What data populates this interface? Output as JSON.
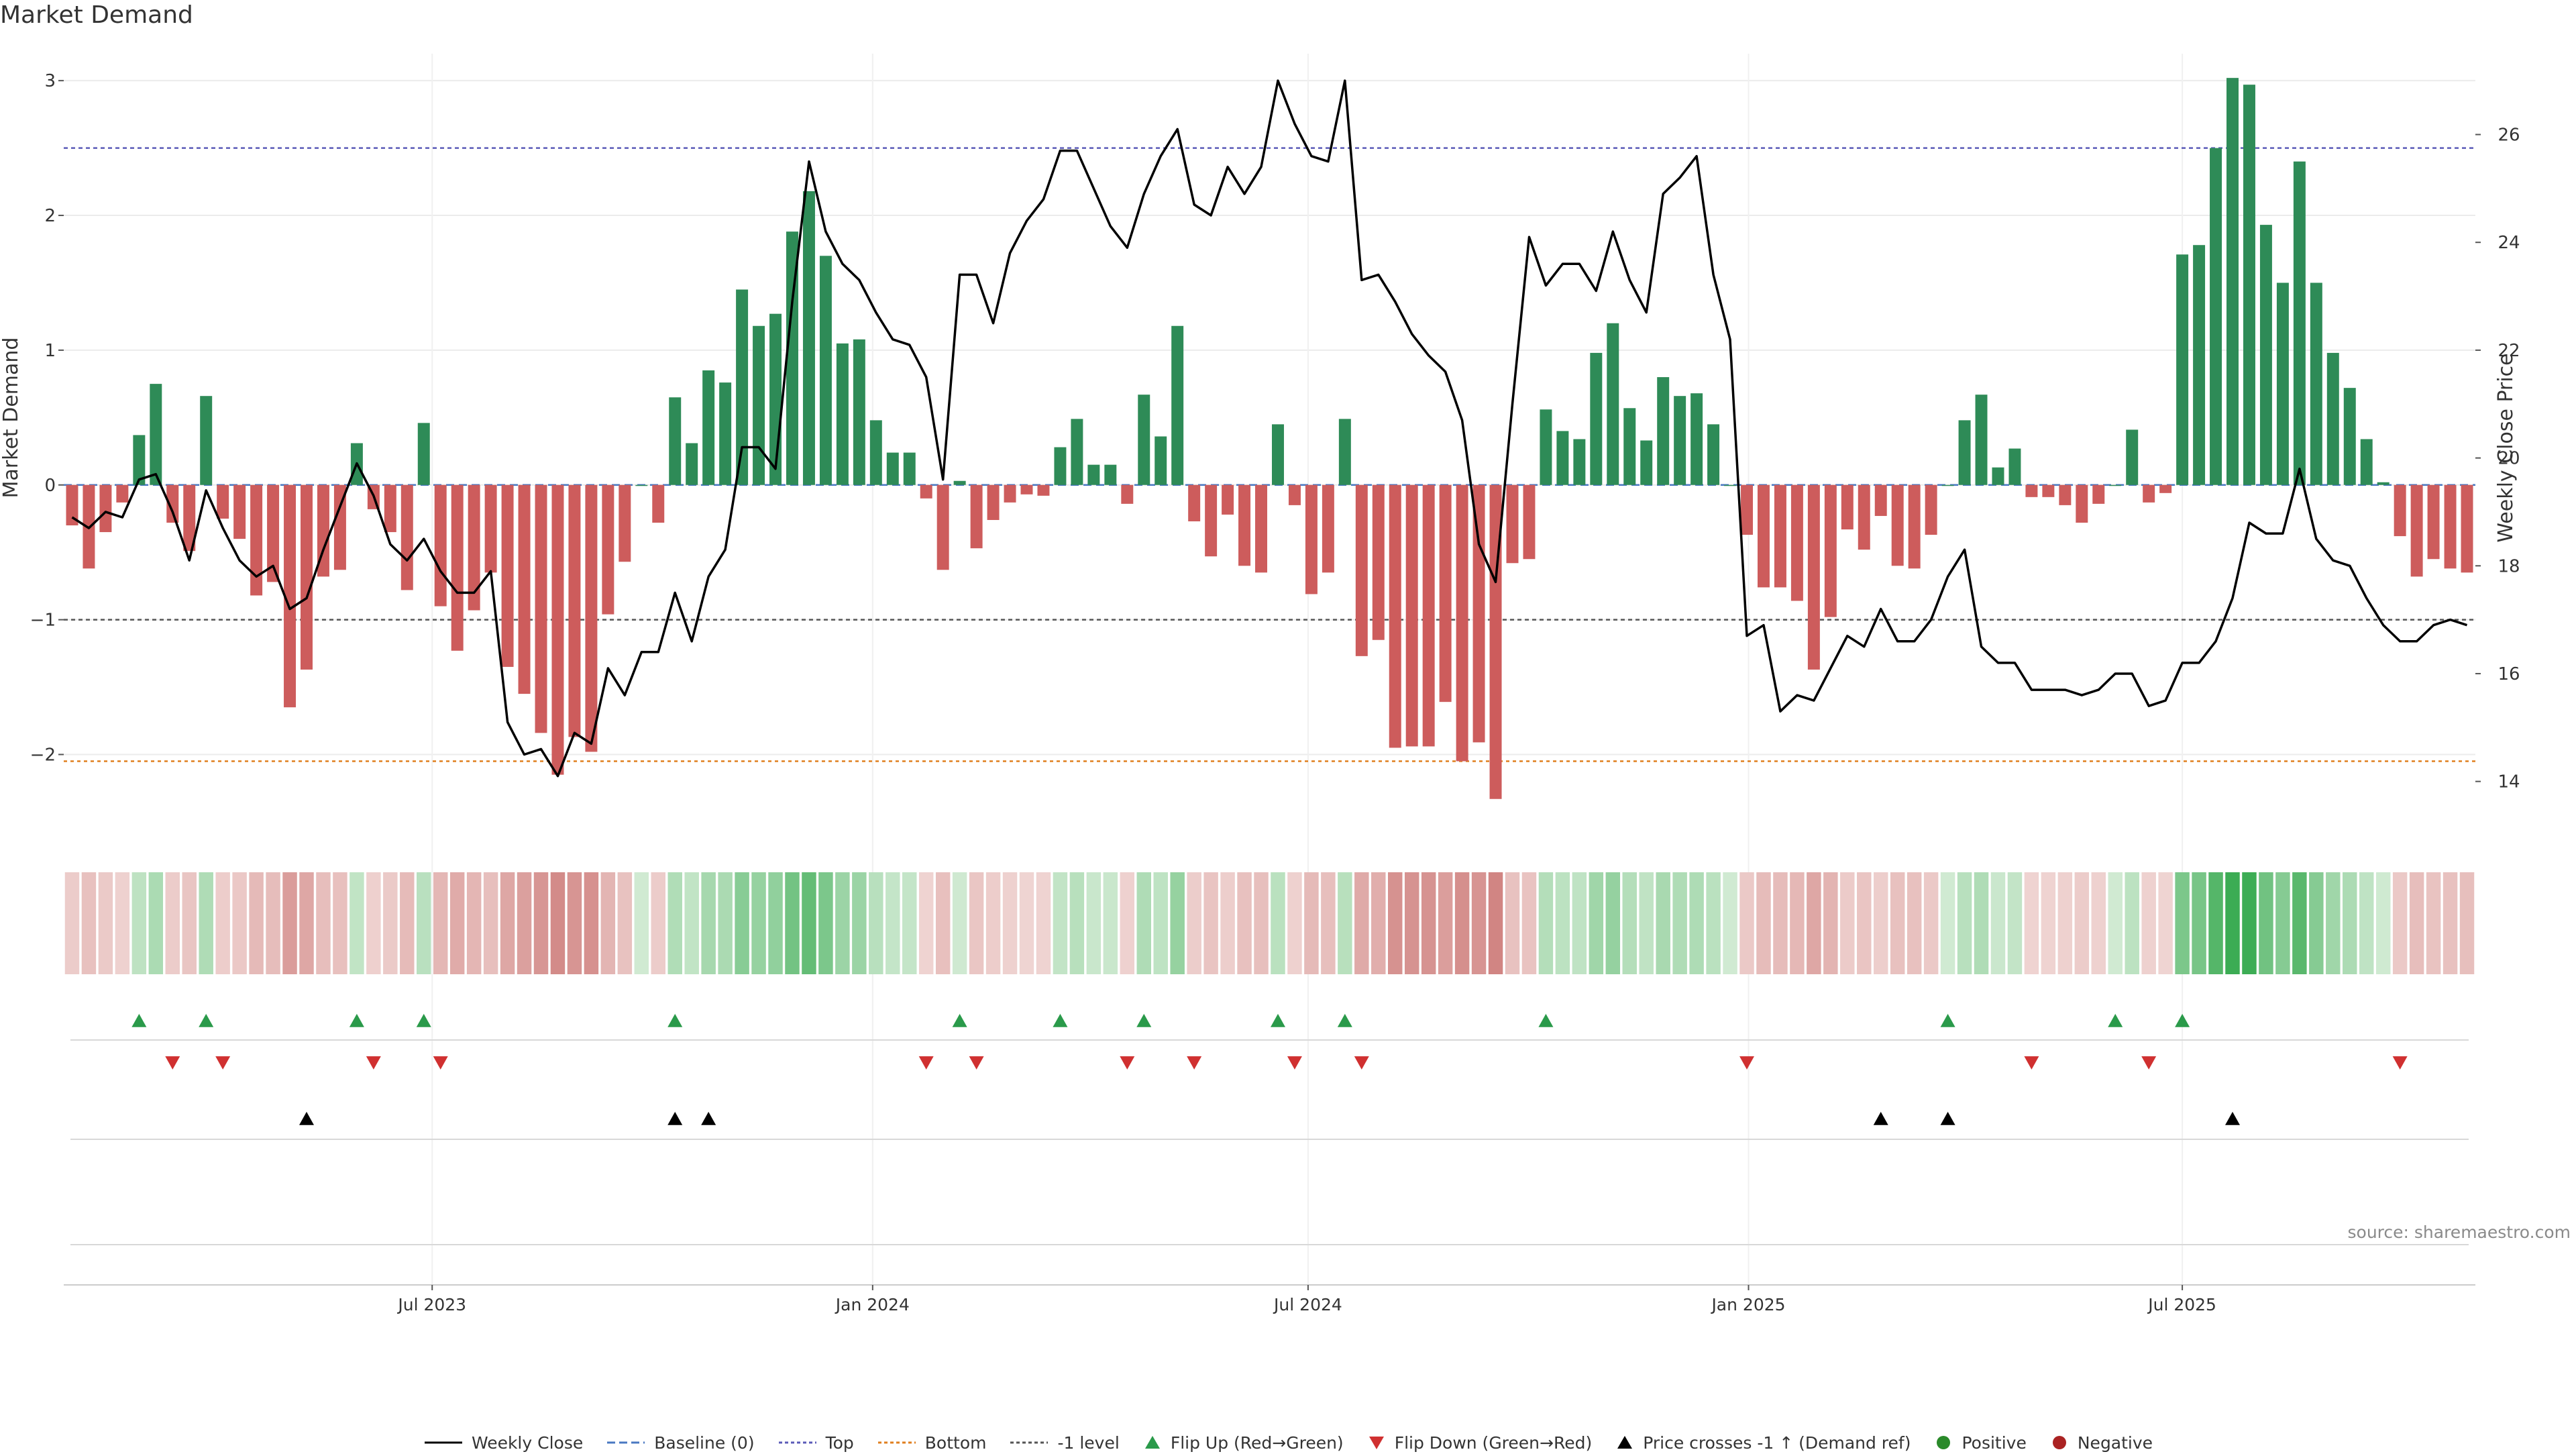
{
  "page_title": "Market Demand",
  "source_note": "source: sharemaestro.com",
  "legend": [
    {
      "key": "weekly_close",
      "label": "Weekly Close",
      "symbol": "line-solid",
      "color": "#000000"
    },
    {
      "key": "baseline",
      "label": "Baseline (0)",
      "symbol": "line-dashed",
      "color": "#4a78c2"
    },
    {
      "key": "top",
      "label": "Top",
      "symbol": "line-dotted",
      "color": "#5b5bb8"
    },
    {
      "key": "bottom",
      "label": "Bottom",
      "symbol": "line-dotted",
      "color": "#e08020"
    },
    {
      "key": "minus1",
      "label": "-1 level",
      "symbol": "line-dotted",
      "color": "#555555"
    },
    {
      "key": "flip_up",
      "label": "Flip Up (Red→Green)",
      "symbol": "tri-up",
      "color": "#2a9a4a"
    },
    {
      "key": "flip_down",
      "label": "Flip Down (Green→Red)",
      "symbol": "tri-down",
      "color": "#d03030"
    },
    {
      "key": "price_cross",
      "label": "Price crosses -1 ↑ (Demand ref)",
      "symbol": "tri-up",
      "color": "#000000"
    },
    {
      "key": "positive",
      "label": "Positive",
      "symbol": "dot",
      "color": "#2a8a2a"
    },
    {
      "key": "negative",
      "label": "Negative",
      "symbol": "dot",
      "color": "#aa2222"
    }
  ],
  "chart_data": {
    "type": "bar",
    "title": "Market Demand",
    "ylabel": "Market Demand",
    "y2label": "Weekly Close Price",
    "ylim": [
      -2.6,
      3.2
    ],
    "y2lim": [
      13.0,
      27.5
    ],
    "yticks": [
      -2,
      -1,
      0,
      1,
      2,
      3
    ],
    "yticklabels": [
      "−2",
      "−1",
      "0",
      "1",
      "2",
      "3"
    ],
    "y2ticks": [
      14,
      16,
      18,
      20,
      22,
      24,
      26
    ],
    "xticks": [
      {
        "week": 22,
        "label": "Jul 2023"
      },
      {
        "week": 48.3,
        "label": "Jan 2024"
      },
      {
        "week": 74.3,
        "label": "Jul 2024"
      },
      {
        "week": 100.6,
        "label": "Jan 2025"
      },
      {
        "week": 126.5,
        "label": "Jul 2025"
      }
    ],
    "reference_lines": {
      "baseline": 0,
      "top": 2.5,
      "bottom": -2.05,
      "minus1": -1
    },
    "positive_color": "#2e8b57",
    "negative_color": "#cd5c5c",
    "demand": [
      -0.3,
      -0.62,
      -0.35,
      -0.13,
      0.37,
      0.75,
      -0.28,
      -0.49,
      0.66,
      -0.25,
      -0.4,
      -0.82,
      -0.72,
      -1.65,
      -1.37,
      -0.68,
      -0.63,
      0.31,
      -0.18,
      -0.35,
      -0.78,
      0.46,
      -0.9,
      -1.23,
      -0.93,
      -0.65,
      -1.35,
      -1.55,
      -1.84,
      -2.15,
      -1.87,
      -1.98,
      -0.96,
      -0.57,
      0.0,
      -0.28,
      0.65,
      0.31,
      0.85,
      0.76,
      1.45,
      1.18,
      1.27,
      1.88,
      2.18,
      1.7,
      1.05,
      1.08,
      0.48,
      0.24,
      0.24,
      -0.1,
      -0.63,
      0.03,
      -0.47,
      -0.26,
      -0.13,
      -0.07,
      -0.08,
      0.28,
      0.49,
      0.15,
      0.15,
      -0.14,
      0.67,
      0.36,
      1.18,
      -0.27,
      -0.53,
      -0.22,
      -0.6,
      -0.65,
      0.45,
      -0.15,
      -0.81,
      -0.65,
      0.49,
      -1.27,
      -1.15,
      -1.95,
      -1.94,
      -1.94,
      -1.61,
      -2.05,
      -1.91,
      -2.33,
      -0.58,
      -0.55,
      0.56,
      0.4,
      0.34,
      0.98,
      1.2,
      0.57,
      0.33,
      0.8,
      0.66,
      0.68,
      0.45,
      0.0,
      -0.37,
      -0.76,
      -0.76,
      -0.86,
      -1.37,
      -0.98,
      -0.33,
      -0.48,
      -0.23,
      -0.6,
      -0.62,
      -0.37,
      0.0,
      0.48,
      0.67,
      0.13,
      0.27,
      -0.09,
      -0.09,
      -0.15,
      -0.28,
      -0.14,
      0.0,
      0.41,
      -0.13,
      -0.06,
      1.71,
      1.78,
      2.5,
      3.02,
      2.97,
      1.93,
      1.5,
      2.4,
      1.5,
      0.98,
      0.72,
      0.34,
      0.02,
      -0.38,
      -0.68,
      -0.55,
      -0.62,
      -0.65
    ],
    "weekly_close": [
      18.9,
      18.7,
      19.0,
      18.9,
      19.6,
      19.7,
      19.0,
      18.1,
      19.4,
      18.7,
      18.1,
      17.8,
      18.0,
      17.2,
      17.4,
      18.3,
      19.1,
      19.9,
      19.3,
      18.4,
      18.1,
      18.5,
      17.9,
      17.5,
      17.5,
      17.9,
      15.1,
      14.5,
      14.6,
      14.1,
      14.9,
      14.7,
      16.1,
      15.6,
      16.4,
      16.4,
      17.5,
      16.6,
      17.8,
      18.3,
      20.2,
      20.2,
      19.8,
      22.9,
      25.5,
      24.2,
      23.6,
      23.3,
      22.7,
      22.2,
      22.1,
      21.5,
      19.6,
      23.4,
      23.4,
      22.5,
      23.8,
      24.4,
      24.8,
      25.7,
      25.7,
      25.0,
      24.3,
      23.9,
      24.9,
      25.6,
      26.1,
      24.7,
      24.5,
      25.4,
      24.9,
      25.4,
      27.0,
      26.2,
      25.6,
      25.5,
      27.0,
      23.3,
      23.4,
      22.9,
      22.3,
      21.9,
      21.6,
      20.7,
      18.4,
      17.7,
      21.0,
      24.1,
      23.2,
      23.6,
      23.6,
      23.1,
      24.2,
      23.3,
      22.7,
      24.9,
      25.2,
      25.6,
      23.4,
      22.2,
      16.7,
      16.9,
      15.3,
      15.6,
      15.5,
      16.1,
      16.7,
      16.5,
      17.2,
      16.6,
      16.6,
      17.0,
      17.8,
      18.3,
      16.5,
      16.2,
      16.2,
      15.7,
      15.7,
      15.7,
      15.6,
      15.7,
      16.0,
      16.0,
      15.4,
      15.5,
      16.2,
      16.2,
      16.6,
      17.4,
      18.8,
      18.6,
      18.6,
      19.8,
      18.5,
      18.1,
      18.0,
      17.4,
      16.9,
      16.6,
      16.6,
      16.9,
      17.0,
      16.9
    ],
    "flip_up_weeks": [
      4,
      8,
      17,
      21,
      36,
      53,
      59,
      64,
      72,
      76,
      88,
      112,
      122,
      126
    ],
    "flip_down_weeks": [
      6,
      9,
      18,
      22,
      51,
      54,
      63,
      67,
      73,
      77,
      100,
      117,
      124,
      139
    ],
    "price_cross_weeks": [
      14,
      36,
      38,
      108,
      112,
      129
    ]
  }
}
